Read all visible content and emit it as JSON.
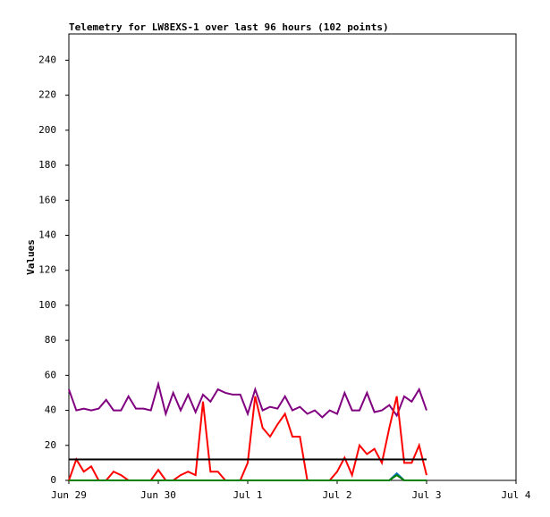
{
  "chart_data": {
    "type": "line",
    "title": "Telemetry for LW8EXS-1 over last 96 hours (102 points)",
    "y_label": "Values",
    "x": [
      0,
      2,
      4,
      6,
      8,
      10,
      12,
      14,
      16,
      18,
      20,
      22,
      24,
      26,
      28,
      30,
      32,
      34,
      36,
      38,
      40,
      42,
      44,
      46,
      48,
      50,
      52,
      54,
      56,
      58,
      60,
      62,
      64,
      66,
      68,
      70,
      72,
      74,
      76,
      78,
      80,
      82,
      84,
      86,
      88,
      90,
      92,
      94,
      96
    ],
    "series": [
      {
        "color": "#800080",
        "values": [
          52,
          40,
          41,
          40,
          41,
          46,
          40,
          40,
          48,
          41,
          41,
          40,
          55,
          38,
          50,
          40,
          49,
          39,
          49,
          45,
          52,
          50,
          49,
          49,
          38,
          52,
          40,
          42,
          41,
          48,
          40,
          42,
          38,
          40,
          36,
          40,
          38,
          50,
          40,
          40,
          50,
          39,
          40,
          43,
          37,
          48,
          45,
          52,
          40
        ]
      },
      {
        "color": "#ff0000",
        "values": [
          0,
          12,
          5,
          8,
          0,
          0,
          5,
          3,
          0,
          0,
          0,
          0,
          6,
          0,
          0,
          3,
          5,
          3,
          45,
          5,
          5,
          0,
          0,
          0,
          10,
          48,
          30,
          25,
          32,
          38,
          25,
          25,
          0,
          0,
          0,
          0,
          5,
          13,
          3,
          20,
          15,
          18,
          10,
          30,
          48,
          10,
          10,
          20,
          3
        ]
      },
      {
        "color": "#000000",
        "values": [
          12,
          12,
          12,
          12,
          12,
          12,
          12,
          12,
          12,
          12,
          12,
          12,
          12,
          12,
          12,
          12,
          12,
          12,
          12,
          12,
          12,
          12,
          12,
          12,
          12,
          12,
          12,
          12,
          12,
          12,
          12,
          12,
          12,
          12,
          12,
          12,
          12,
          12,
          12,
          12,
          12,
          12,
          12,
          12,
          12,
          12,
          12,
          12,
          12
        ]
      },
      {
        "color": "#0070c0",
        "values": [
          0,
          0,
          0,
          0,
          0,
          0,
          0,
          0,
          0,
          0,
          0,
          0,
          0,
          0,
          0,
          0,
          0,
          0,
          0,
          0,
          0,
          0,
          0,
          0,
          0,
          0,
          0,
          0,
          0,
          0,
          0,
          0,
          0,
          0,
          0,
          0,
          0,
          0,
          0,
          0,
          0,
          0,
          0,
          0,
          4,
          0,
          0,
          0,
          0
        ]
      },
      {
        "color": "#008000",
        "values": [
          0,
          0,
          0,
          0,
          0,
          0,
          0,
          0,
          0,
          0,
          0,
          0,
          0,
          0,
          0,
          0,
          0,
          0,
          0,
          0,
          0,
          0,
          0,
          0,
          0,
          0,
          0,
          0,
          0,
          0,
          0,
          0,
          0,
          0,
          0,
          0,
          0,
          0,
          0,
          0,
          0,
          0,
          0,
          0,
          3,
          0,
          0,
          0,
          0
        ]
      }
    ],
    "xlim": [
      0,
      120
    ],
    "xticks": [
      {
        "value": 0,
        "label": "Jun 29"
      },
      {
        "value": 24,
        "label": "Jun 30"
      },
      {
        "value": 48,
        "label": "Jul 1"
      },
      {
        "value": 72,
        "label": "Jul 2"
      },
      {
        "value": 96,
        "label": "Jul 3"
      },
      {
        "value": 120,
        "label": "Jul 4"
      }
    ],
    "ylim": [
      0,
      255
    ],
    "yticks": [
      0,
      20,
      40,
      60,
      80,
      100,
      120,
      140,
      160,
      180,
      200,
      220,
      240
    ]
  }
}
